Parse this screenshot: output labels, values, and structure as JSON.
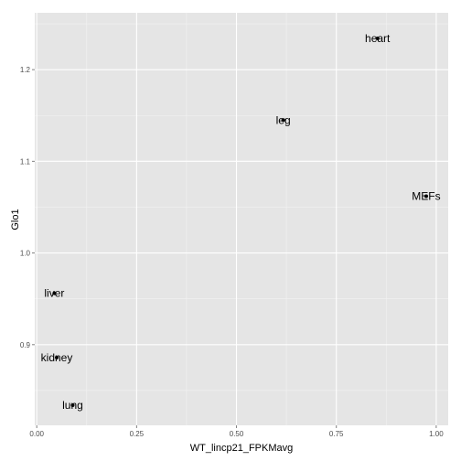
{
  "chart_data": {
    "type": "scatter",
    "title": "",
    "xlabel": "WT_lincp21_FPKMavg",
    "ylabel": "Glo1",
    "xlim": [
      -0.005,
      1.03
    ],
    "ylim": [
      0.812,
      1.262
    ],
    "xticks": [
      0.0,
      0.25,
      0.5,
      0.75,
      1.0
    ],
    "xtick_labels": [
      "0.00",
      "0.25",
      "0.50",
      "0.75",
      "1.00"
    ],
    "yticks": [
      0.9,
      1.0,
      1.1,
      1.2
    ],
    "ytick_labels": [
      "0.9",
      "1.0",
      "1.1",
      "1.2"
    ],
    "grid": true,
    "colors": {
      "panel": "#e5e5e5",
      "grid_major": "#ffffff",
      "grid_minor": "#f2f2f2",
      "point": "#000000"
    },
    "points": [
      {
        "label": "heart",
        "x": 0.853,
        "y": 1.234
      },
      {
        "label": "leg",
        "x": 0.617,
        "y": 1.145
      },
      {
        "label": "MEFs",
        "x": 0.975,
        "y": 1.062
      },
      {
        "label": "liver",
        "x": 0.044,
        "y": 0.956
      },
      {
        "label": "kidney",
        "x": 0.05,
        "y": 0.886
      },
      {
        "label": "lung",
        "x": 0.09,
        "y": 0.834
      }
    ]
  }
}
